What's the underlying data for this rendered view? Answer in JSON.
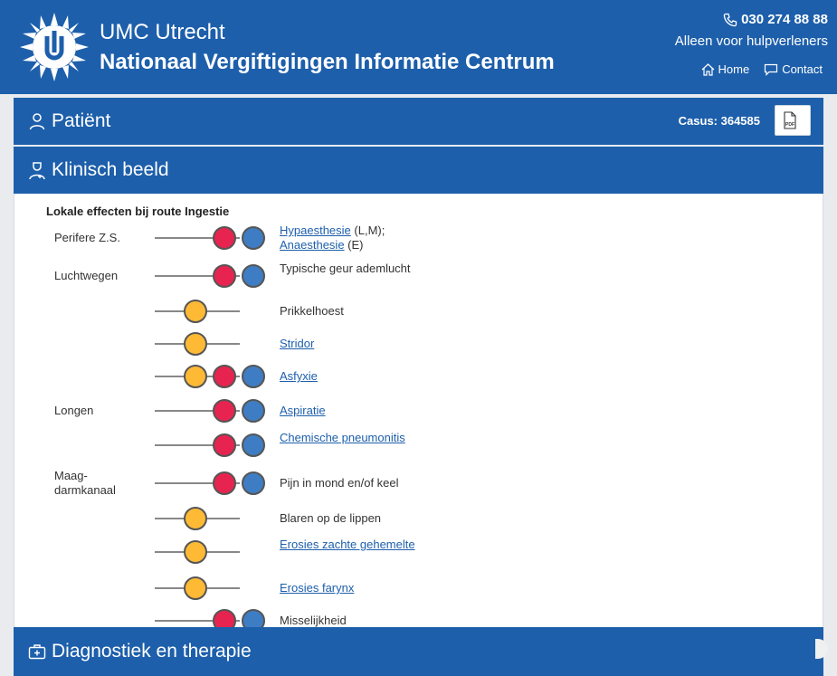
{
  "header": {
    "org_name": "UMC Utrecht",
    "center_name": "Nationaal Vergiftigingen Informatie Centrum",
    "phone": "030 274 88 88",
    "tagline": "Alleen voor hulpverleners",
    "nav": {
      "home": "Home",
      "contact": "Contact"
    },
    "logo_icon": "umc-sun-logo"
  },
  "sections": {
    "patient": {
      "label": "Patiënt",
      "casus": "Casus: 364585",
      "pdf_icon": "pdf-icon"
    },
    "klinisch": {
      "label": "Klinisch beeld"
    },
    "diagnostiek": {
      "label": "Diagnostiek en therapie"
    }
  },
  "clinical": {
    "title": "Lokale effecten bij route Ingestie",
    "rows": [
      {
        "group": "Perifere Z.S.",
        "dots": [
          "red",
          "blue"
        ],
        "parts": [
          {
            "t": "Hypaesthesie",
            "link": true
          },
          {
            "t": " (L,M);",
            "link": false
          },
          {
            "t": "\n",
            "link": false
          },
          {
            "t": "Anaesthesie",
            "link": true
          },
          {
            "t": " (E)",
            "link": false
          }
        ]
      },
      {
        "group": "Luchtwegen",
        "dots": [
          "red",
          "blue"
        ],
        "parts": [
          {
            "t": "Typische geur ademlucht",
            "link": false
          }
        ]
      },
      {
        "group": "",
        "dots": [
          "yellow"
        ],
        "parts": [
          {
            "t": "Prikkelhoest",
            "link": false
          }
        ]
      },
      {
        "group": "",
        "dots": [
          "yellow"
        ],
        "parts": [
          {
            "t": "Stridor",
            "link": true
          }
        ]
      },
      {
        "group": "",
        "dots": [
          "yellow",
          "red",
          "blue"
        ],
        "parts": [
          {
            "t": "Asfyxie",
            "link": true
          }
        ]
      },
      {
        "group": "Longen",
        "dots": [
          "red",
          "blue"
        ],
        "parts": [
          {
            "t": "Aspiratie",
            "link": true
          }
        ]
      },
      {
        "group": "",
        "dots": [
          "red",
          "blue"
        ],
        "parts": [
          {
            "t": "Chemische pneumonitis",
            "link": true
          }
        ]
      },
      {
        "group": "Maag-\ndarmkanaal",
        "dots": [
          "red",
          "blue"
        ],
        "parts": [
          {
            "t": "Pijn in mond en/of keel",
            "link": false
          }
        ]
      },
      {
        "group": "",
        "dots": [
          "yellow"
        ],
        "parts": [
          {
            "t": "Blaren op de lippen",
            "link": false
          }
        ]
      },
      {
        "group": "",
        "dots": [
          "yellow"
        ],
        "parts": [
          {
            "t": "Erosies zachte gehemelte",
            "link": true
          }
        ]
      },
      {
        "group": "",
        "dots": [
          "yellow"
        ],
        "parts": [
          {
            "t": "Erosies farynx",
            "link": true
          }
        ]
      },
      {
        "group": "",
        "dots": [
          "red",
          "blue"
        ],
        "parts": [
          {
            "t": "Misselijkheid",
            "link": false
          }
        ]
      }
    ]
  }
}
